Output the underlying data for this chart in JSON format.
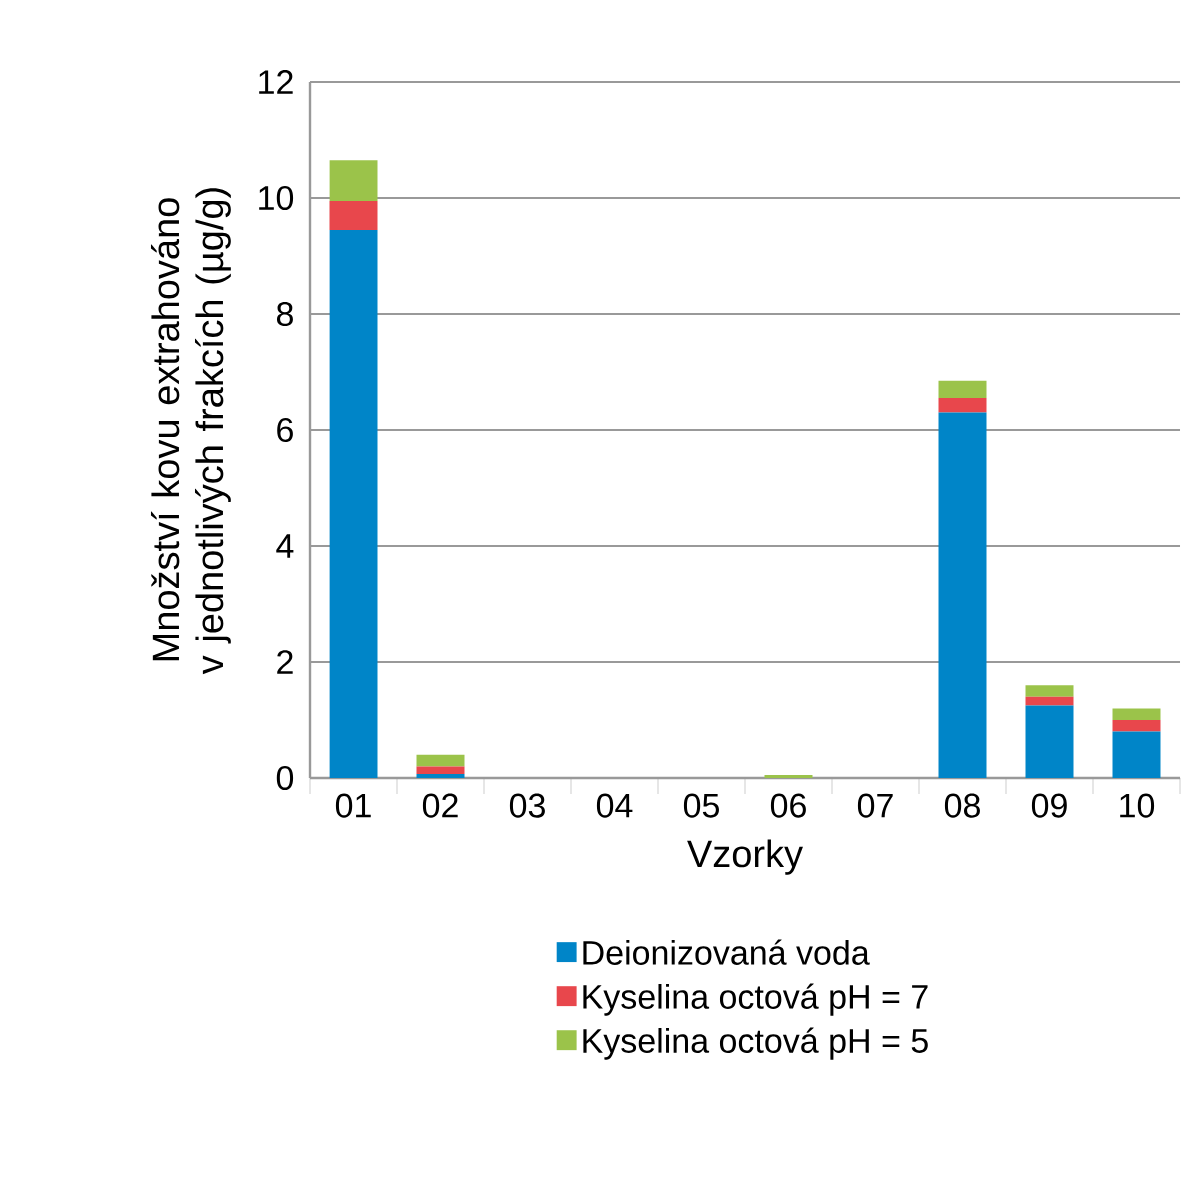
{
  "chart_data": {
    "type": "bar",
    "stacked": true,
    "xlabel": "Vzorky",
    "ylabel": "Množství kovu extrahováno v jednotlivých frakcích (µg/g)",
    "categories": [
      "01",
      "02",
      "03",
      "04",
      "05",
      "06",
      "07",
      "08",
      "09",
      "10"
    ],
    "series": [
      {
        "name": "Deionizovaná voda",
        "color": "#0085c8",
        "values": [
          9.45,
          0.07,
          0,
          0,
          0,
          0,
          0,
          6.3,
          1.25,
          0.8
        ]
      },
      {
        "name": "Kyselina octová pH = 7",
        "color": "#e8474c",
        "values": [
          0.5,
          0.13,
          0,
          0,
          0,
          0,
          0,
          0.25,
          0.15,
          0.2
        ]
      },
      {
        "name": "Kyselina octová pH = 5",
        "color": "#9bc34a",
        "values": [
          0.7,
          0.2,
          0,
          0,
          0,
          0.05,
          0,
          0.3,
          0.2,
          0.2
        ]
      }
    ],
    "ylim": [
      0,
      12
    ],
    "yticks": [
      0,
      2,
      4,
      6,
      8,
      10,
      12
    ],
    "grid": "y",
    "legend": "bottom"
  }
}
